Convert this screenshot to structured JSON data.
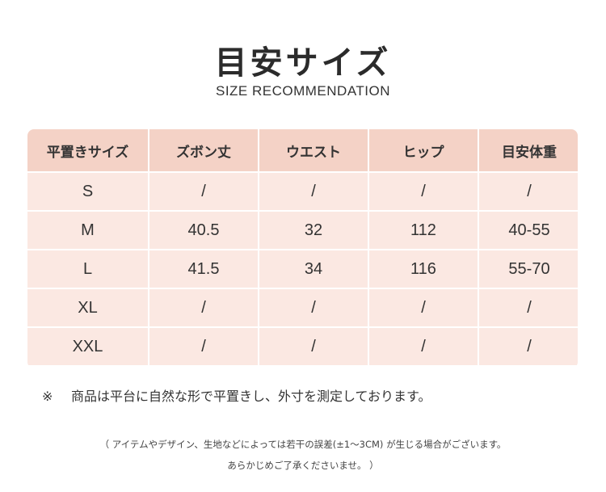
{
  "header": {
    "title": "目安サイズ",
    "subtitle": "SIZE RECOMMENDATION"
  },
  "colors": {
    "header_cell": "#f4d2c6",
    "body_cell": "#fbe8e2",
    "text": "#333333"
  },
  "size_table": {
    "columns": [
      "平置きサイズ",
      "ズボン丈",
      "ウエスト",
      "ヒップ",
      "目安体重"
    ],
    "rows": [
      [
        "S",
        "/",
        "/",
        "/",
        "/"
      ],
      [
        "M",
        "40.5",
        "32",
        "112",
        "40-55"
      ],
      [
        "L",
        "41.5",
        "34",
        "116",
        "55-70"
      ],
      [
        "XL",
        "/",
        "/",
        "/",
        "/"
      ],
      [
        "XXL",
        "/",
        "/",
        "/",
        "/"
      ]
    ]
  },
  "note": {
    "mark": "※",
    "text": "商品は平台に自然な形で平置きし、外寸を測定しております。"
  },
  "disclaimer": {
    "line1": "（ アイテムやデザイン、生地などによっては若干の誤差(±1～3CM) が生じる場合がございます。",
    "line2": "あらかじめご了承くださいませ。 ）"
  }
}
